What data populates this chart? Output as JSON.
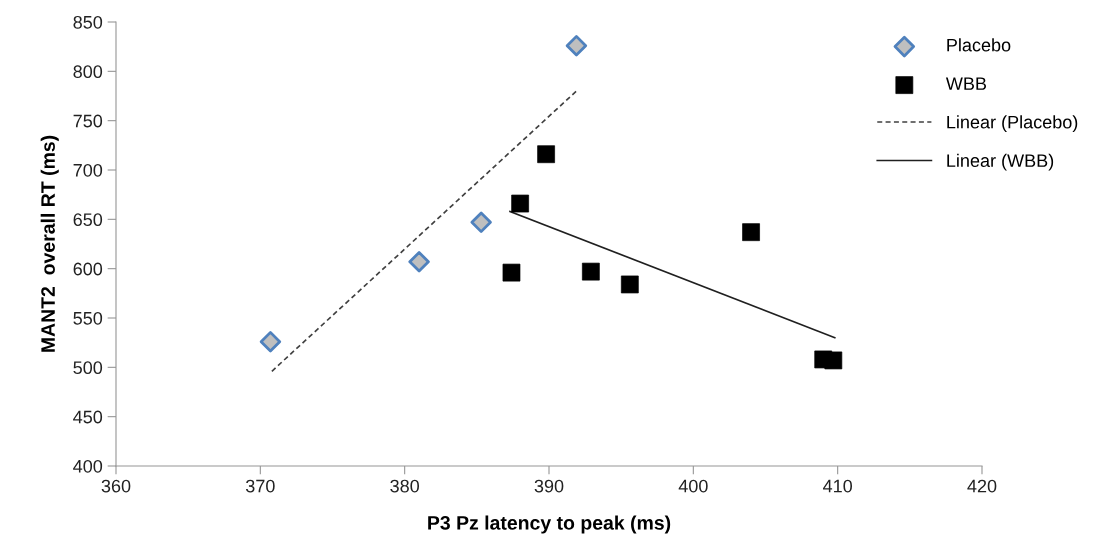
{
  "chart_data": {
    "type": "scatter",
    "xlabel": "P3 Pz latency to peak (ms)",
    "ylabel": "MANT2  overall RT (ms)",
    "xlim": [
      360,
      420
    ],
    "xticks": [
      360,
      370,
      380,
      390,
      400,
      410,
      420
    ],
    "ylim": [
      400,
      850
    ],
    "yticks": [
      400,
      450,
      500,
      550,
      600,
      650,
      700,
      750,
      800,
      850
    ],
    "grid": false,
    "legend": "top right",
    "series": [
      {
        "name": "Placebo",
        "marker": "diamond",
        "color": "#bfbfbf",
        "x": [
          370.7,
          381.0,
          385.3,
          391.9
        ],
        "values": [
          526,
          607,
          647,
          826
        ]
      },
      {
        "name": "WBB",
        "marker": "square",
        "color": "#000000",
        "x": [
          389.8,
          388.0,
          387.4,
          392.9,
          395.6,
          404.0,
          409.0,
          409.7
        ],
        "values": [
          716,
          666,
          596,
          597,
          584,
          637,
          508,
          507
        ]
      },
      {
        "name": "Linear (Placebo)",
        "type": "line",
        "line_style": "dashed",
        "marker": "none",
        "color": "#404040",
        "x": [
          370.8,
          391.9
        ],
        "values": [
          496,
          780
        ]
      },
      {
        "name": "Linear (WBB)",
        "type": "line",
        "line_style": "solid",
        "marker": "none",
        "color": "#202020",
        "x": [
          387.3,
          409.8
        ],
        "values": [
          658,
          530
        ]
      }
    ]
  }
}
